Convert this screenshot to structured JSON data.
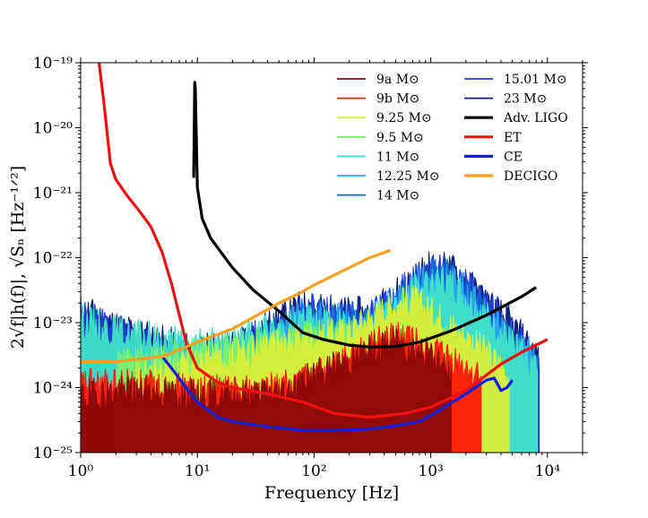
{
  "chart_data": {
    "type": "line",
    "title": "",
    "xlabel": "Frequency [Hz]",
    "ylabel": "2√f|h(f)|,  √Sₙ [Hz⁻¹ᐟ²]",
    "x_scale": "log",
    "y_scale": "log",
    "xlim": [
      1,
      20000
    ],
    "ylim": [
      1e-25,
      1e-19
    ],
    "x_ticks": [
      {
        "value": 1,
        "label": "10⁰"
      },
      {
        "value": 10,
        "label": "10¹"
      },
      {
        "value": 100,
        "label": "10²"
      },
      {
        "value": 1000,
        "label": "10³"
      },
      {
        "value": 10000,
        "label": "10⁴"
      }
    ],
    "y_ticks": [
      {
        "value": 1e-25,
        "label": "10⁻²⁵"
      },
      {
        "value": 1e-24,
        "label": "10⁻²⁴"
      },
      {
        "value": 1e-23,
        "label": "10⁻²³"
      },
      {
        "value": 1e-22,
        "label": "10⁻²²"
      },
      {
        "value": 1e-21,
        "label": "10⁻²¹"
      },
      {
        "value": 1e-20,
        "label": "10⁻²⁰"
      },
      {
        "value": 1e-19,
        "label": "10⁻¹⁹"
      }
    ],
    "legend_position": "top-right",
    "signal_series": [
      {
        "name": "23 M⊙",
        "color": "#0b1a7a",
        "seed": 11,
        "kind": "fill",
        "envelope": [
          [
            1,
            2.2e-23
          ],
          [
            2,
            1.2e-23
          ],
          [
            5,
            7e-24
          ],
          [
            10,
            5e-24
          ],
          [
            20,
            6e-24
          ],
          [
            50,
            1.5e-23
          ],
          [
            80,
            2.5e-23
          ],
          [
            150,
            2e-23
          ],
          [
            300,
            1.8e-23
          ],
          [
            600,
            5e-23
          ],
          [
            1000,
            1e-22
          ],
          [
            1500,
            9e-23
          ],
          [
            2500,
            4e-23
          ],
          [
            5000,
            1.2e-23
          ],
          [
            8500,
            4e-24
          ]
        ]
      },
      {
        "name": "15.01 M⊙",
        "color": "#1f3fd0",
        "seed": 12,
        "kind": "fill",
        "envelope": [
          [
            1,
            1.8e-23
          ],
          [
            2,
            1e-23
          ],
          [
            5,
            6e-24
          ],
          [
            10,
            4.5e-24
          ],
          [
            20,
            5.5e-24
          ],
          [
            50,
            1.3e-23
          ],
          [
            80,
            2.2e-23
          ],
          [
            150,
            1.8e-23
          ],
          [
            300,
            1.6e-23
          ],
          [
            600,
            4.5e-23
          ],
          [
            1000,
            9e-23
          ],
          [
            1500,
            8e-23
          ],
          [
            2500,
            3.5e-23
          ],
          [
            5000,
            1e-23
          ],
          [
            8400,
            3e-24
          ]
        ]
      },
      {
        "name": "14 M⊙",
        "color": "#1565d8",
        "seed": 13,
        "kind": "fill",
        "envelope": [
          [
            2,
            3e-24
          ],
          [
            5,
            3e-24
          ],
          [
            10,
            3.5e-24
          ],
          [
            20,
            5e-24
          ],
          [
            50,
            1e-23
          ],
          [
            80,
            1.8e-23
          ],
          [
            150,
            1.6e-23
          ],
          [
            300,
            1.5e-23
          ],
          [
            600,
            4e-23
          ],
          [
            1000,
            8e-23
          ],
          [
            1500,
            7e-23
          ],
          [
            2500,
            3e-23
          ],
          [
            5000,
            8e-24
          ],
          [
            8300,
            3e-24
          ]
        ]
      },
      {
        "name": "12.25 M⊙",
        "color": "#2aa6ee",
        "seed": 14,
        "kind": "fill",
        "envelope": [
          [
            3,
            2e-24
          ],
          [
            5,
            2.5e-24
          ],
          [
            10,
            3e-24
          ],
          [
            20,
            4.5e-24
          ],
          [
            50,
            9e-24
          ],
          [
            80,
            1.6e-23
          ],
          [
            150,
            1.4e-23
          ],
          [
            300,
            1.3e-23
          ],
          [
            600,
            3.5e-23
          ],
          [
            1000,
            7e-23
          ],
          [
            1500,
            6e-23
          ],
          [
            2500,
            2.5e-23
          ],
          [
            5000,
            7e-24
          ],
          [
            8200,
            3e-24
          ]
        ]
      },
      {
        "name": "11 M⊙",
        "color": "#40e0c8",
        "seed": 15,
        "kind": "fill",
        "envelope": [
          [
            1,
            1.5e-23
          ],
          [
            2,
            1e-23
          ],
          [
            5,
            7e-24
          ],
          [
            10,
            6e-24
          ],
          [
            20,
            7e-24
          ],
          [
            50,
            1.1e-23
          ],
          [
            80,
            1.5e-23
          ],
          [
            150,
            1.3e-23
          ],
          [
            300,
            1.2e-23
          ],
          [
            600,
            3.2e-23
          ],
          [
            1000,
            6.5e-23
          ],
          [
            1500,
            5e-23
          ],
          [
            2500,
            2.2e-23
          ],
          [
            5000,
            6e-24
          ],
          [
            8200,
            2.5e-24
          ]
        ]
      },
      {
        "name": "9.5 M⊙",
        "color": "#7dee6e",
        "seed": 16,
        "kind": "fill",
        "envelope": [
          [
            2,
            3e-24
          ],
          [
            5,
            4e-24
          ],
          [
            10,
            5e-24
          ],
          [
            20,
            5.5e-24
          ],
          [
            50,
            7e-24
          ],
          [
            100,
            8e-24
          ],
          [
            200,
            7e-24
          ],
          [
            400,
            1e-23
          ],
          [
            700,
            1.5e-23
          ],
          [
            1000,
            1.2e-23
          ],
          [
            1500,
            6e-24
          ],
          [
            2000,
            2e-24
          ]
        ]
      },
      {
        "name": "9.25 M⊙",
        "color": "#d8ee3a",
        "seed": 17,
        "kind": "fill",
        "envelope": [
          [
            3,
            2e-24
          ],
          [
            5,
            2.5e-24
          ],
          [
            10,
            3e-24
          ],
          [
            20,
            4e-24
          ],
          [
            50,
            6e-24
          ],
          [
            100,
            8e-24
          ],
          [
            200,
            1e-23
          ],
          [
            400,
            2.2e-23
          ],
          [
            700,
            3e-23
          ],
          [
            1000,
            2e-23
          ],
          [
            1500,
            1.2e-23
          ],
          [
            2500,
            6e-24
          ],
          [
            4000,
            3e-24
          ],
          [
            4700,
            2e-24
          ]
        ]
      },
      {
        "name": "9b M⊙",
        "color": "#ff1a0a",
        "seed": 18,
        "kind": "fill",
        "envelope": [
          [
            1,
            1.5e-24
          ],
          [
            3,
            1.5e-24
          ],
          [
            10,
            1.2e-24
          ],
          [
            50,
            1.3e-24
          ],
          [
            100,
            2e-24
          ],
          [
            200,
            3.5e-24
          ],
          [
            300,
            6e-24
          ],
          [
            500,
            8e-24
          ],
          [
            800,
            6e-24
          ],
          [
            1200,
            4e-24
          ],
          [
            2000,
            2.5e-24
          ],
          [
            2700,
            2e-24
          ]
        ]
      },
      {
        "name": "9a M⊙",
        "color": "#8b0a0a",
        "seed": 19,
        "kind": "fill",
        "envelope": [
          [
            1,
            1e-24
          ],
          [
            3,
            1.2e-24
          ],
          [
            10,
            1e-24
          ],
          [
            50,
            1.1e-24
          ],
          [
            100,
            2e-24
          ],
          [
            200,
            3.5e-24
          ],
          [
            300,
            5e-24
          ],
          [
            500,
            7e-24
          ],
          [
            800,
            5e-24
          ],
          [
            1100,
            4e-24
          ],
          [
            1500,
            2e-24
          ]
        ]
      }
    ],
    "noise_curves": [
      {
        "name": "Adv. LIGO",
        "color": "#000000",
        "width": 3.2,
        "points": [
          [
            9.3,
            1.7e-21
          ],
          [
            9.5,
            5e-20
          ],
          [
            9.6,
            4e-20
          ],
          [
            10,
            1.2e-21
          ],
          [
            11,
            4e-22
          ],
          [
            13,
            2e-22
          ],
          [
            16,
            1.2e-22
          ],
          [
            20,
            7e-23
          ],
          [
            30,
            3.2e-23
          ],
          [
            50,
            1.5e-23
          ],
          [
            80,
            7e-24
          ],
          [
            120,
            5.5e-24
          ],
          [
            200,
            4.5e-24
          ],
          [
            300,
            4.2e-24
          ],
          [
            500,
            4.3e-24
          ],
          [
            800,
            5e-24
          ],
          [
            1500,
            7.5e-24
          ],
          [
            3000,
            1.3e-23
          ],
          [
            6000,
            2.5e-23
          ],
          [
            8000,
            3.5e-23
          ]
        ]
      },
      {
        "name": "ET",
        "color": "#ee1111",
        "width": 3.2,
        "points": [
          [
            1.4,
            1.5e-19
          ],
          [
            1.6,
            2e-20
          ],
          [
            1.8,
            2.8e-21
          ],
          [
            2,
            1.6e-21
          ],
          [
            2.5,
            9e-22
          ],
          [
            3,
            6e-22
          ],
          [
            4,
            3e-22
          ],
          [
            5,
            1.2e-22
          ],
          [
            6,
            4e-23
          ],
          [
            8,
            5e-24
          ],
          [
            10,
            2e-24
          ],
          [
            15,
            1.2e-24
          ],
          [
            20,
            1e-24
          ],
          [
            40,
            8e-25
          ],
          [
            80,
            6e-25
          ],
          [
            150,
            4e-25
          ],
          [
            300,
            3.5e-25
          ],
          [
            600,
            4e-25
          ],
          [
            1000,
            5e-25
          ],
          [
            2000,
            9e-25
          ],
          [
            4000,
            2.3e-24
          ],
          [
            6000,
            3.5e-24
          ],
          [
            10000,
            5.5e-24
          ]
        ]
      },
      {
        "name": "CE",
        "color": "#1020d8",
        "width": 3.2,
        "points": [
          [
            5,
            3e-24
          ],
          [
            6,
            2e-24
          ],
          [
            8,
            1e-24
          ],
          [
            10,
            6e-25
          ],
          [
            15,
            3.5e-25
          ],
          [
            20,
            3e-25
          ],
          [
            40,
            2.5e-25
          ],
          [
            80,
            2.2e-25
          ],
          [
            150,
            2.2e-25
          ],
          [
            300,
            2.3e-25
          ],
          [
            500,
            2.6e-25
          ],
          [
            800,
            3e-25
          ],
          [
            1200,
            4.5e-25
          ],
          [
            2000,
            8e-25
          ],
          [
            3000,
            1.3e-24
          ],
          [
            3500,
            1.4e-24
          ],
          [
            4000,
            9e-25
          ],
          [
            4500,
            1e-24
          ],
          [
            5000,
            1.3e-24
          ]
        ]
      },
      {
        "name": "DECIGO",
        "color": "#f5a020",
        "width": 3.2,
        "points": [
          [
            1,
            2.5e-24
          ],
          [
            2,
            2.5e-24
          ],
          [
            5,
            3e-24
          ],
          [
            10,
            5e-24
          ],
          [
            20,
            8e-24
          ],
          [
            30,
            1.2e-23
          ],
          [
            50,
            2e-23
          ],
          [
            80,
            3e-23
          ],
          [
            100,
            3.8e-23
          ],
          [
            200,
            7e-23
          ],
          [
            300,
            1e-22
          ],
          [
            400,
            1.2e-22
          ],
          [
            450,
            1.3e-22
          ]
        ]
      }
    ],
    "legend_left": [
      "9a M⊙",
      "9b M⊙",
      "9.25 M⊙",
      "9.5 M⊙",
      "11 M⊙",
      "12.25 M⊙",
      "14 M⊙"
    ],
    "legend_left_colors": [
      "#8b0a0a",
      "#ff1a0a",
      "#d8ee3a",
      "#7dee6e",
      "#40e0c8",
      "#2aa6ee",
      "#1565d8"
    ],
    "legend_right": [
      "15.01 M⊙",
      "23 M⊙",
      "Adv. LIGO",
      "ET",
      "CE",
      "DECIGO"
    ],
    "legend_right_colors": [
      "#1f3fd0",
      "#0b1a7a",
      "#000000",
      "#ee1111",
      "#1020d8",
      "#f5a020"
    ]
  }
}
